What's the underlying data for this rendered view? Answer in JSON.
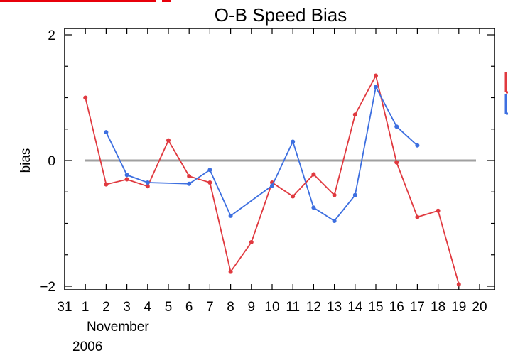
{
  "chart_data": {
    "type": "line",
    "title": "O-B Speed Bias",
    "ylabel": "bias",
    "x_ticks": [
      "31",
      "1",
      "2",
      "3",
      "4",
      "5",
      "6",
      "7",
      "8",
      "9",
      "10",
      "11",
      "12",
      "13",
      "14",
      "15",
      "16",
      "17",
      "18",
      "19",
      "20"
    ],
    "x_month_label": "November",
    "x_year_label": "2006",
    "xlim": [
      31,
      20
    ],
    "ylim": [
      -2,
      2
    ],
    "y_major_ticks": [
      -2,
      0,
      2
    ],
    "zero_line": true,
    "grid": false,
    "legend_placement": "right (cut off)",
    "series": [
      {
        "color": "#e0393f",
        "x": [
          1,
          2,
          3,
          4,
          5,
          6,
          7,
          8,
          9,
          10,
          11,
          12,
          13,
          14,
          15,
          16,
          17,
          18,
          19
        ],
        "values": [
          1.0,
          -0.38,
          -0.3,
          -0.41,
          0.32,
          -0.25,
          -0.35,
          -1.77,
          -1.3,
          -0.35,
          -0.57,
          -0.22,
          -0.55,
          0.73,
          1.35,
          -0.03,
          -0.9,
          -0.8,
          -1.97
        ]
      },
      {
        "color": "#3d6fe0",
        "x": [
          2,
          3,
          4,
          6,
          7,
          8,
          10,
          11,
          12,
          13,
          14,
          15,
          16,
          17
        ],
        "values": [
          0.45,
          -0.23,
          -0.35,
          -0.37,
          -0.15,
          -0.88,
          -0.4,
          0.3,
          -0.75,
          -0.96,
          -0.55,
          1.17,
          0.54,
          0.24
        ]
      }
    ]
  },
  "page": {
    "header_fragment_color": "#e8000b"
  }
}
